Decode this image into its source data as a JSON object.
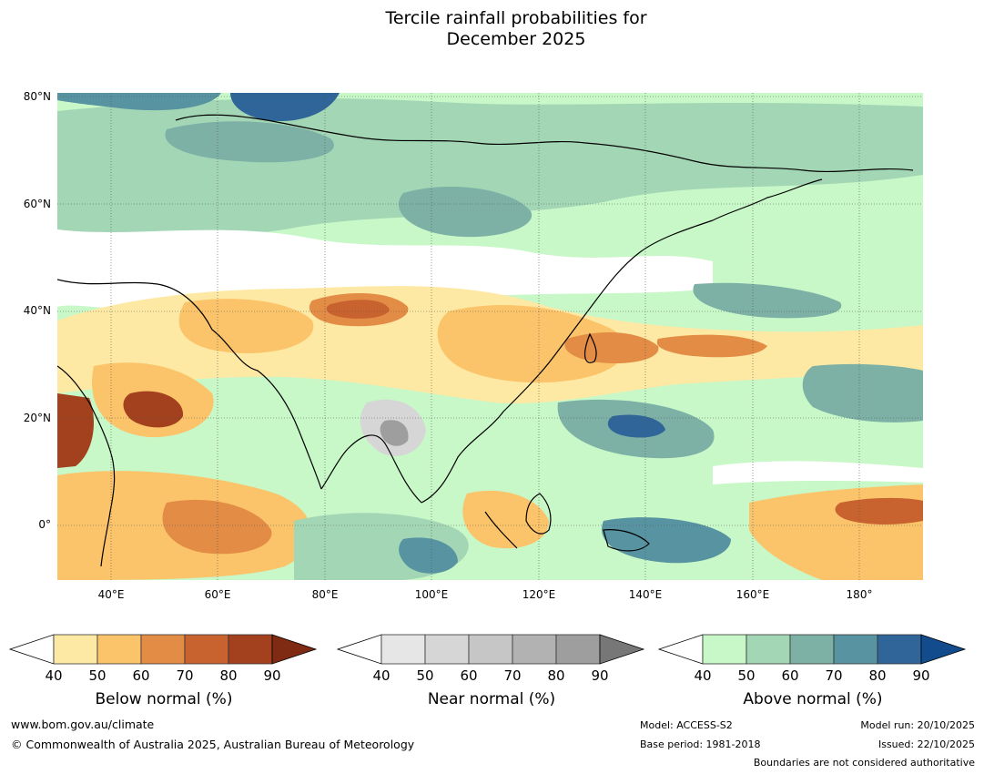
{
  "title": {
    "line1": "Tercile rainfall probabilities for",
    "line2": "December 2025"
  },
  "map": {
    "lat_labels": [
      "80°N",
      "60°N",
      "40°N",
      "20°N",
      "0°"
    ],
    "lon_labels": [
      "40°E",
      "60°E",
      "80°E",
      "100°E",
      "120°E",
      "140°E",
      "160°E",
      "180°"
    ],
    "colors": {
      "below": [
        "#fde9a3",
        "#fbc46a",
        "#e38c45",
        "#c8622f",
        "#a3401e",
        "#7f2a13"
      ],
      "near": [
        "#e6e6e6",
        "#d6d6d6",
        "#c6c6c6",
        "#b2b2b2",
        "#9e9e9e",
        "#777777"
      ],
      "above": [
        "#c8f7c8",
        "#a3d6b5",
        "#7db1a6",
        "#5793a0",
        "#2f6599",
        "#124c8d"
      ]
    }
  },
  "legend": {
    "below": {
      "title": "Below normal (%)",
      "ticks": [
        "40",
        "50",
        "60",
        "70",
        "80",
        "90"
      ]
    },
    "near": {
      "title": "Near normal (%)",
      "ticks": [
        "40",
        "50",
        "60",
        "70",
        "80",
        "90"
      ]
    },
    "above": {
      "title": "Above normal (%)",
      "ticks": [
        "40",
        "50",
        "60",
        "70",
        "80",
        "90"
      ]
    }
  },
  "footer": {
    "website": "www.bom.gov.au/climate",
    "copyright": "© Commonwealth of Australia 2025, Australian Bureau of Meteorology",
    "model": "Model: ACCESS-S2",
    "base_period": "Base period: 1981-2018",
    "model_run": "Model run: 20/10/2025",
    "issued": "Issued: 22/10/2025",
    "disclaimer": "Boundaries are not considered authoritative"
  }
}
